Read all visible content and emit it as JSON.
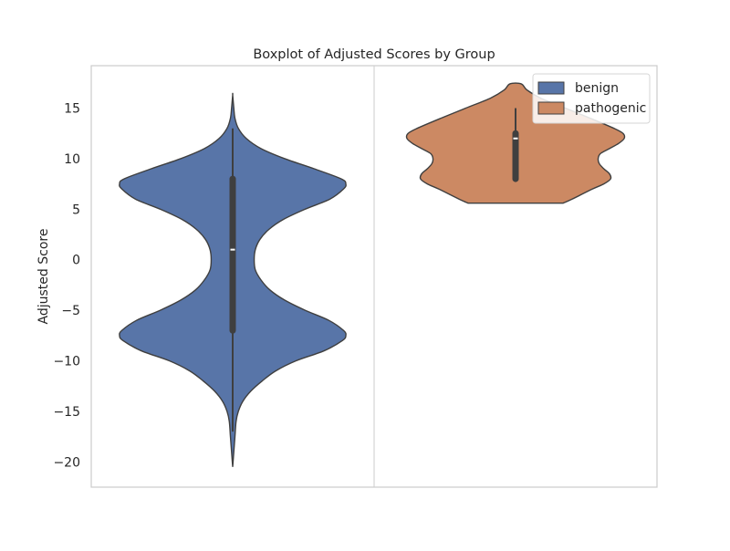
{
  "chart_data": {
    "type": "violin",
    "title": "Boxplot of Adjusted Scores by Group",
    "xlabel": "",
    "ylabel": "Adjusted Score",
    "ylim": [
      -22.5,
      19.2
    ],
    "yticks": [
      {
        "value": 15,
        "label": "15"
      },
      {
        "value": 10,
        "label": "10"
      },
      {
        "value": 5,
        "label": "5"
      },
      {
        "value": 0,
        "label": "0"
      },
      {
        "value": -5,
        "label": "−5"
      },
      {
        "value": -10,
        "label": "−10"
      },
      {
        "value": -15,
        "label": "−15"
      },
      {
        "value": -20,
        "label": "−20"
      }
    ],
    "grid": true,
    "legend_position": "top-right",
    "series": [
      {
        "name": "benign",
        "color": "#5875a8",
        "min": -20.5,
        "max": 16.3,
        "whisker_low": -17,
        "whisker_high": 13,
        "q1": -7,
        "median": 1,
        "q3": 8,
        "density": [
          [
            -20.5,
            0.0
          ],
          [
            -19.0,
            0.01
          ],
          [
            -17.5,
            0.02
          ],
          [
            -16.0,
            0.03
          ],
          [
            -15.0,
            0.05
          ],
          [
            -14.0,
            0.09
          ],
          [
            -13.0,
            0.16
          ],
          [
            -12.0,
            0.26
          ],
          [
            -11.0,
            0.38
          ],
          [
            -10.0,
            0.56
          ],
          [
            -9.0,
            0.81
          ],
          [
            -8.0,
            0.97
          ],
          [
            -7.5,
            1.0
          ],
          [
            -7.0,
            0.98
          ],
          [
            -6.0,
            0.85
          ],
          [
            -5.0,
            0.64
          ],
          [
            -4.0,
            0.46
          ],
          [
            -3.0,
            0.33
          ],
          [
            -2.0,
            0.25
          ],
          [
            -1.0,
            0.2
          ],
          [
            0.0,
            0.19
          ],
          [
            1.0,
            0.2
          ],
          [
            2.0,
            0.24
          ],
          [
            3.0,
            0.32
          ],
          [
            4.0,
            0.45
          ],
          [
            5.0,
            0.64
          ],
          [
            6.0,
            0.86
          ],
          [
            7.0,
            0.98
          ],
          [
            7.5,
            1.0
          ],
          [
            8.0,
            0.96
          ],
          [
            9.0,
            0.72
          ],
          [
            10.0,
            0.46
          ],
          [
            11.0,
            0.25
          ],
          [
            12.0,
            0.12
          ],
          [
            13.0,
            0.05
          ],
          [
            14.0,
            0.02
          ],
          [
            15.0,
            0.01
          ],
          [
            16.3,
            0.0
          ]
        ]
      },
      {
        "name": "pathogenic",
        "color": "#cc8963",
        "min": 5.6,
        "max": 17.4,
        "whisker_low": 8,
        "whisker_high": 15,
        "q1": 8,
        "median": 12,
        "q3": 12.5,
        "density": [
          [
            5.6,
            0.42
          ],
          [
            6.0,
            0.5
          ],
          [
            7.0,
            0.68
          ],
          [
            7.5,
            0.78
          ],
          [
            8.0,
            0.84
          ],
          [
            8.5,
            0.83
          ],
          [
            9.0,
            0.78
          ],
          [
            9.5,
            0.74
          ],
          [
            10.0,
            0.73
          ],
          [
            10.5,
            0.75
          ],
          [
            11.0,
            0.83
          ],
          [
            11.5,
            0.91
          ],
          [
            12.0,
            0.96
          ],
          [
            12.5,
            0.95
          ],
          [
            13.0,
            0.87
          ],
          [
            14.0,
            0.66
          ],
          [
            15.0,
            0.44
          ],
          [
            16.0,
            0.22
          ],
          [
            16.8,
            0.1
          ],
          [
            17.4,
            0.05
          ]
        ]
      }
    ]
  }
}
